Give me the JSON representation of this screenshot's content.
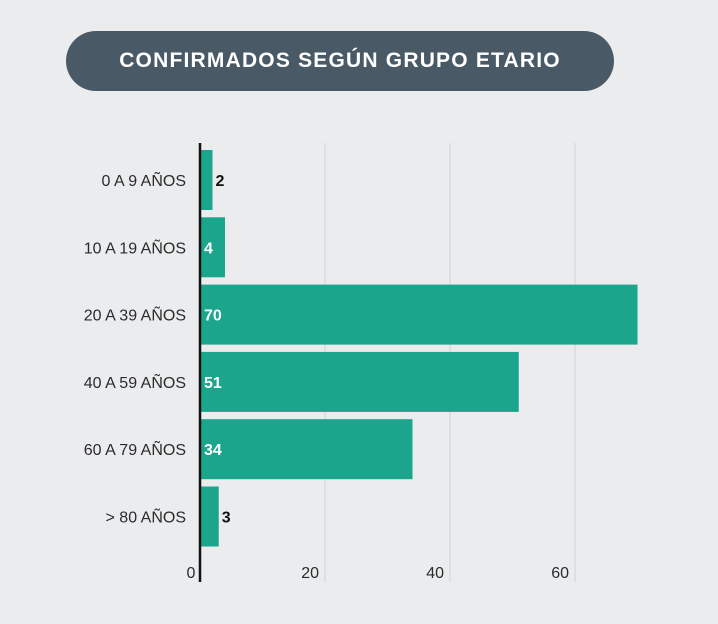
{
  "title": "CONFIRMADOS SEGÚN GRUPO ETARIO",
  "colors": {
    "bar": "#1aa58c",
    "title_bg": "#495a66",
    "background": "#ebecee",
    "grid": "#cfd2d6",
    "axis": "#111111"
  },
  "chart_data": {
    "type": "bar",
    "orientation": "horizontal",
    "title": "CONFIRMADOS SEGÚN GRUPO ETARIO",
    "categories": [
      "0 A 9 AÑOS",
      "10 A 19 AÑOS",
      "20 A 39 AÑOS",
      "40 A 59 AÑOS",
      "60 A 79 AÑOS",
      "> 80 AÑOS"
    ],
    "values": [
      2,
      4,
      70,
      51,
      34,
      3
    ],
    "xlim": [
      0,
      70
    ],
    "xticks": [
      0,
      20,
      40,
      60
    ],
    "grid": true,
    "xlabel": "",
    "ylabel": ""
  }
}
